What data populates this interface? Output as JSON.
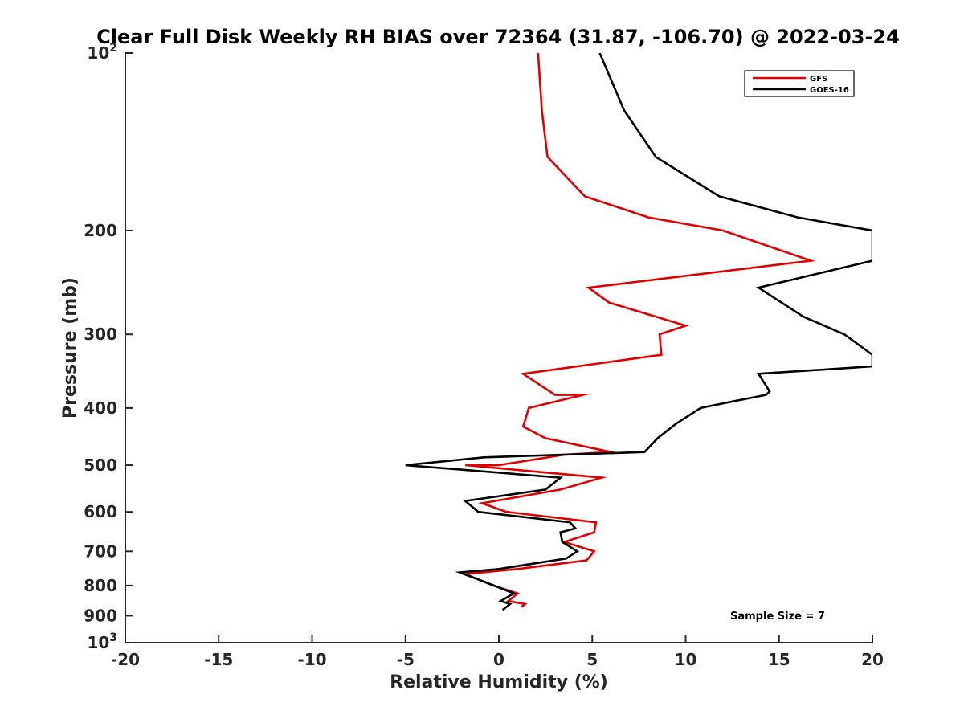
{
  "chart_data": {
    "type": "line",
    "title": "Clear Full Disk Weekly RH BIAS over 72364 (31.87, -106.70) @ 2022-03-24",
    "xlabel": "Relative Humidity (%)",
    "ylabel": "Pressure (mb)",
    "xlim": [
      -20,
      20
    ],
    "ylim": [
      100,
      1000
    ],
    "y_scale": "log",
    "y_reversed": true,
    "grid": false,
    "legend_position": "top-right",
    "x_ticks": [
      "-20",
      "-15",
      "-10",
      "-5",
      "0",
      "5",
      "10",
      "15",
      "20"
    ],
    "y_ticks": [
      {
        "value": 100,
        "base": "10",
        "exp": "2"
      },
      {
        "value": 200,
        "label": "200"
      },
      {
        "value": 300,
        "label": "300"
      },
      {
        "value": 400,
        "label": "400"
      },
      {
        "value": 500,
        "label": "500"
      },
      {
        "value": 600,
        "label": "600"
      },
      {
        "value": 700,
        "label": "700"
      },
      {
        "value": 800,
        "label": "800"
      },
      {
        "value": 900,
        "label": "900"
      },
      {
        "value": 1000,
        "base": "10",
        "exp": "3"
      }
    ],
    "series": [
      {
        "name": "GFS",
        "color": "#e00000",
        "points": [
          [
            2.1,
            100
          ],
          [
            2.3,
            125
          ],
          [
            2.6,
            150
          ],
          [
            4.6,
            175
          ],
          [
            8.0,
            190
          ],
          [
            12.0,
            200
          ],
          [
            16.7,
            225
          ],
          [
            4.8,
            250
          ],
          [
            5.9,
            265
          ],
          [
            10.0,
            290
          ],
          [
            8.6,
            300
          ],
          [
            8.7,
            325
          ],
          [
            1.3,
            350
          ],
          [
            3.0,
            380
          ],
          [
            4.5,
            380
          ],
          [
            1.6,
            400
          ],
          [
            1.3,
            430
          ],
          [
            2.5,
            450
          ],
          [
            6.0,
            475
          ],
          [
            3.5,
            480
          ],
          [
            0.0,
            500
          ],
          [
            -1.8,
            500
          ],
          [
            5.5,
            525
          ],
          [
            3.3,
            550
          ],
          [
            -0.9,
            580
          ],
          [
            0.4,
            600
          ],
          [
            5.2,
            625
          ],
          [
            5.1,
            650
          ],
          [
            3.5,
            675
          ],
          [
            5.1,
            700
          ],
          [
            4.7,
            725
          ],
          [
            1.0,
            750
          ],
          [
            -1.8,
            765
          ],
          [
            -0.3,
            800
          ],
          [
            1.0,
            825
          ],
          [
            0.5,
            850
          ],
          [
            1.4,
            860
          ],
          [
            1.2,
            870
          ]
        ]
      },
      {
        "name": "GOES-16",
        "color": "#000000",
        "points": [
          [
            5.4,
            100
          ],
          [
            6.7,
            125
          ],
          [
            8.4,
            150
          ],
          [
            11.8,
            175
          ],
          [
            16.0,
            190
          ],
          [
            20.0,
            200
          ],
          [
            20.0,
            225
          ],
          [
            13.9,
            250
          ],
          [
            16.3,
            280
          ],
          [
            18.5,
            300
          ],
          [
            20.0,
            325
          ],
          [
            20.0,
            340
          ],
          [
            13.9,
            350
          ],
          [
            14.5,
            375
          ],
          [
            14.3,
            380
          ],
          [
            12.5,
            390
          ],
          [
            10.8,
            400
          ],
          [
            9.5,
            425
          ],
          [
            8.5,
            450
          ],
          [
            7.8,
            475
          ],
          [
            -0.8,
            485
          ],
          [
            -5.0,
            500
          ],
          [
            3.3,
            525
          ],
          [
            2.5,
            550
          ],
          [
            -1.8,
            575
          ],
          [
            -1.1,
            600
          ],
          [
            3.8,
            625
          ],
          [
            4.1,
            640
          ],
          [
            3.3,
            650
          ],
          [
            3.4,
            675
          ],
          [
            4.2,
            700
          ],
          [
            3.6,
            720
          ],
          [
            0.0,
            750
          ],
          [
            -2.1,
            760
          ],
          [
            -0.7,
            790
          ],
          [
            0.8,
            825
          ],
          [
            0.1,
            850
          ],
          [
            0.6,
            860
          ],
          [
            0.2,
            880
          ]
        ]
      }
    ],
    "annotations": [
      "Sample Size = 7"
    ]
  }
}
